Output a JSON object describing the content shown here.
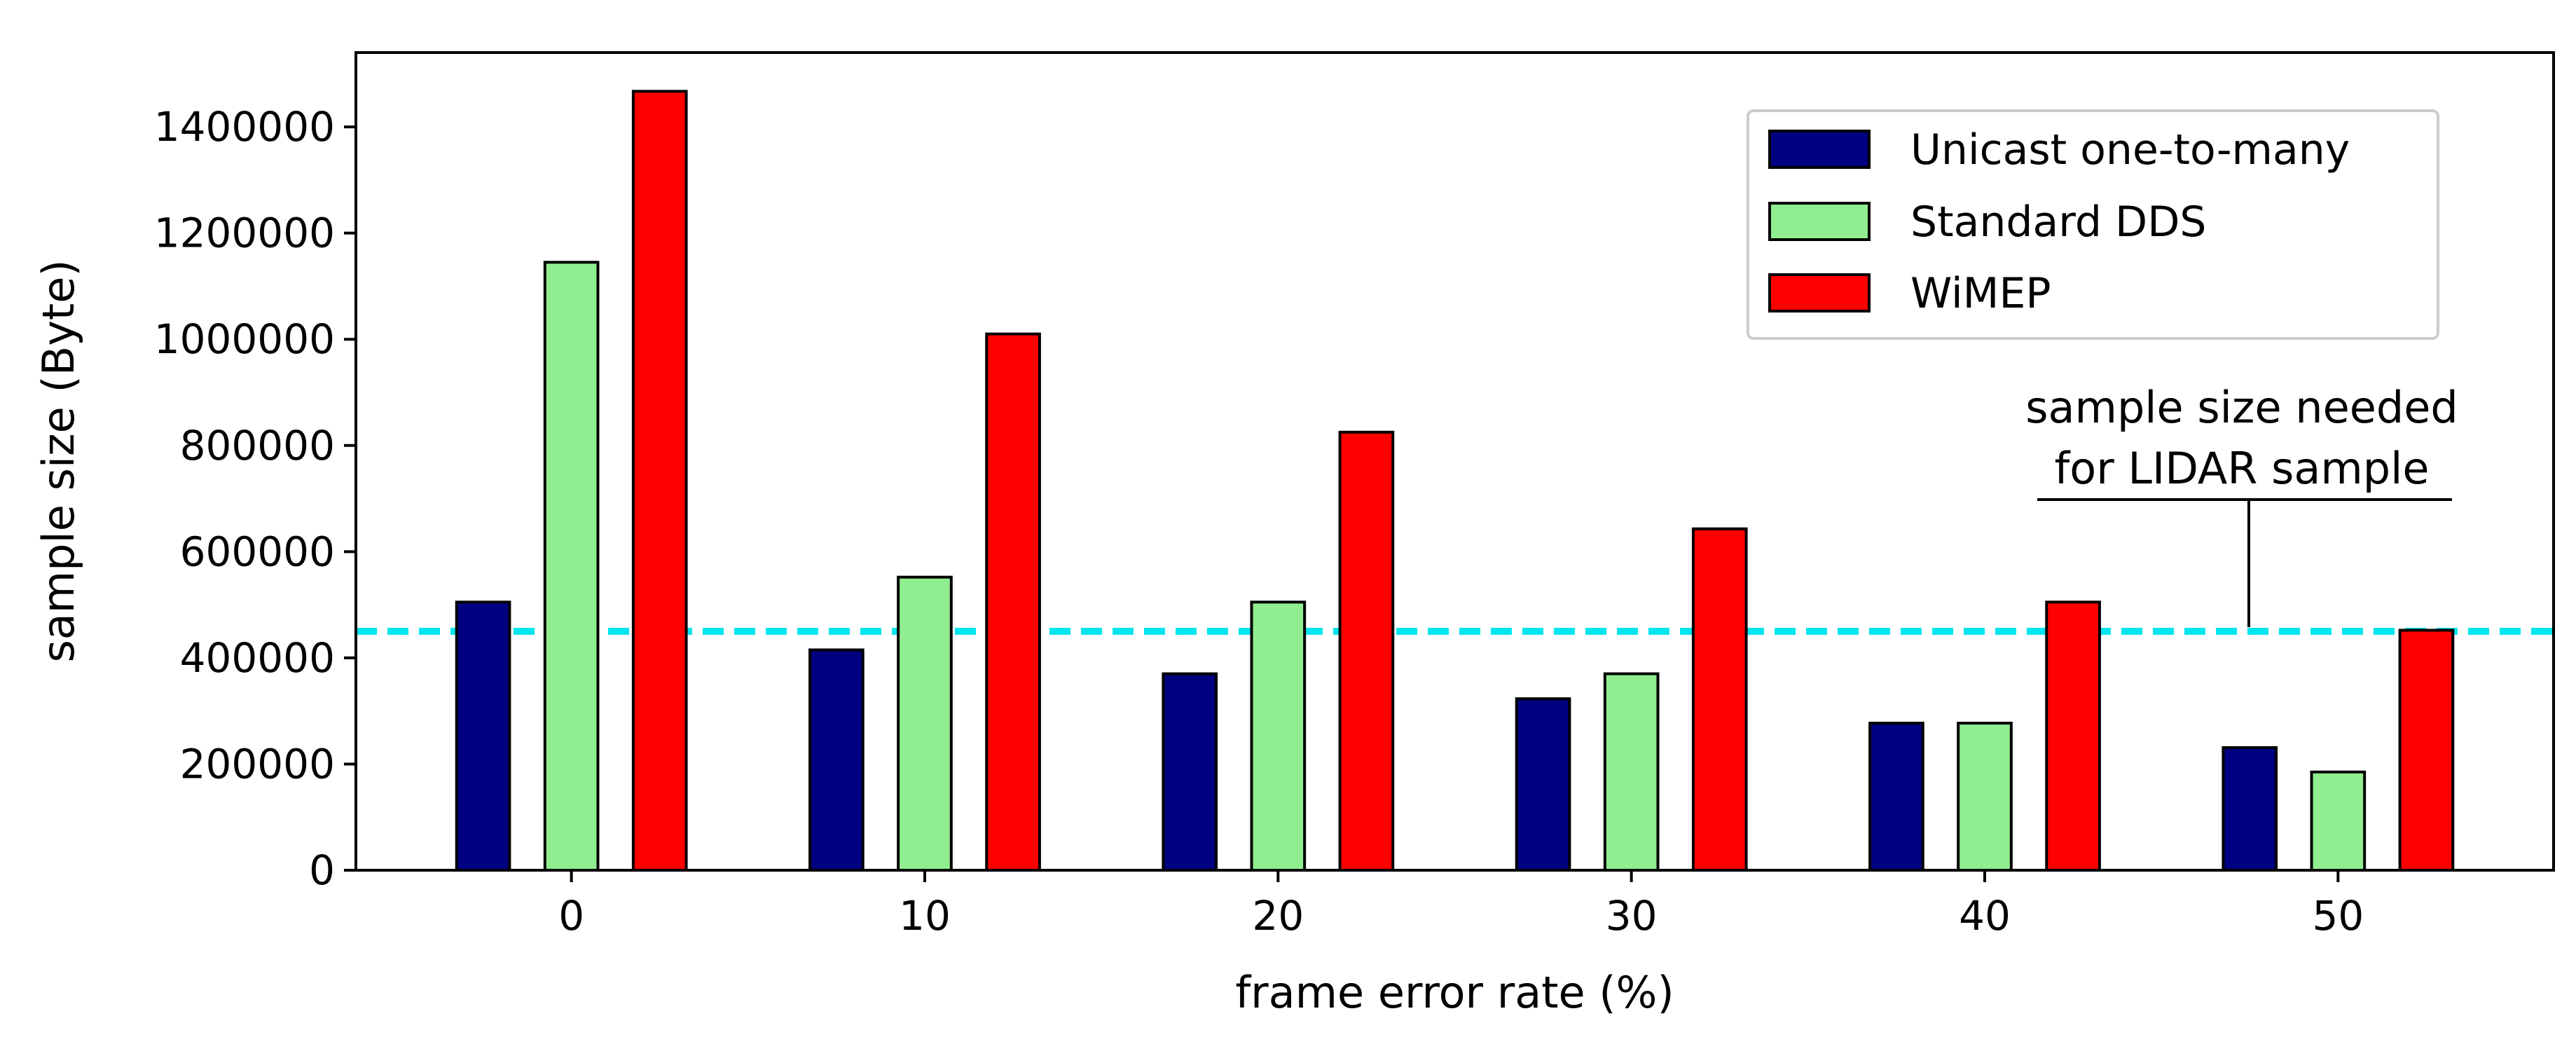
{
  "chart_data": {
    "type": "bar",
    "x": [
      0,
      10,
      20,
      30,
      40,
      50
    ],
    "categories": [
      "0",
      "10",
      "20",
      "30",
      "40",
      "50"
    ],
    "series": [
      {
        "name": "Unicast one-to-many",
        "color": "#000080",
        "values": [
          505000,
          415000,
          370000,
          323000,
          277000,
          231000
        ]
      },
      {
        "name": "Standard DDS",
        "color": "#90ee90",
        "values": [
          1145000,
          552000,
          505000,
          370000,
          277000,
          185000
        ]
      },
      {
        "name": "WiMEP",
        "color": "#ff0000",
        "values": [
          1467000,
          1010000,
          825000,
          643000,
          505000,
          452000
        ]
      }
    ],
    "xlabel": "frame error rate (%)",
    "ylabel": "sample size (Byte)",
    "ylim": [
      0,
      1540000
    ],
    "yticks": [
      0,
      200000,
      400000,
      600000,
      800000,
      1000000,
      1200000,
      1400000
    ],
    "ytick_labels": [
      "0",
      "200000",
      "400000",
      "600000",
      "800000",
      "1000000",
      "1200000",
      "1400000"
    ],
    "xtick_labels": [
      "0",
      "10",
      "20",
      "30",
      "40",
      "50"
    ],
    "xlim": [
      -6.1,
      56.1
    ],
    "reference_line": {
      "value": 450000,
      "color": "#00e5ee",
      "style": "dashed"
    },
    "annotation": {
      "lines": [
        "sample size needed",
        "for LIDAR sample"
      ],
      "points_to_value": 450000,
      "x_value": 47.5
    },
    "legend_position": "top-right",
    "grid": false
  }
}
